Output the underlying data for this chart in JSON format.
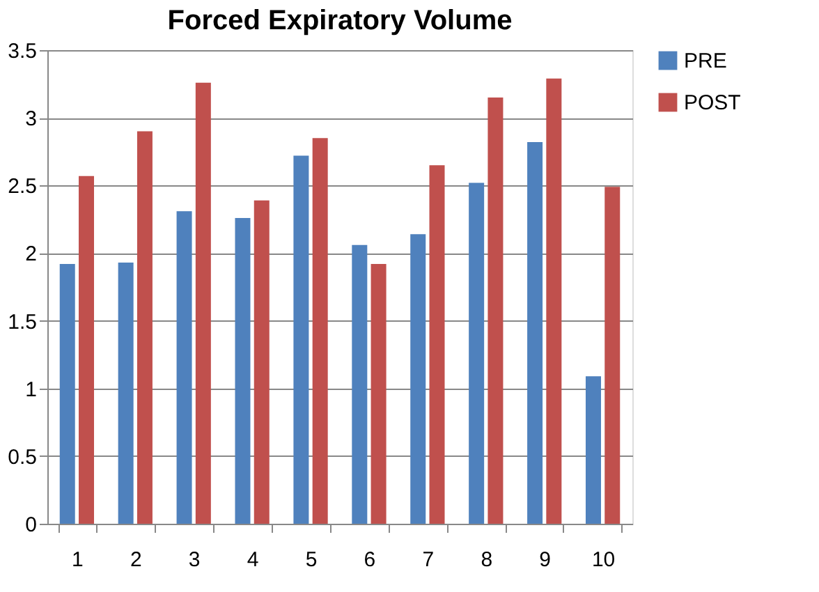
{
  "chart_data": {
    "type": "bar",
    "title": "Forced Expiratory Volume",
    "categories": [
      "1",
      "2",
      "3",
      "4",
      "5",
      "6",
      "7",
      "8",
      "9",
      "10"
    ],
    "series": [
      {
        "name": "PRE",
        "color": "#4f81bd",
        "values": [
          1.92,
          1.93,
          2.31,
          2.26,
          2.72,
          2.06,
          2.14,
          2.52,
          2.82,
          1.09
        ]
      },
      {
        "name": "POST",
        "color": "#c0504d",
        "values": [
          2.57,
          2.9,
          3.26,
          2.39,
          2.85,
          1.92,
          2.65,
          3.15,
          3.29,
          2.49
        ]
      }
    ],
    "ylim": [
      0,
      3.5
    ],
    "yticks": [
      0,
      0.5,
      1,
      1.5,
      2,
      2.5,
      3,
      3.5
    ],
    "grid": "y",
    "legend": "right"
  }
}
